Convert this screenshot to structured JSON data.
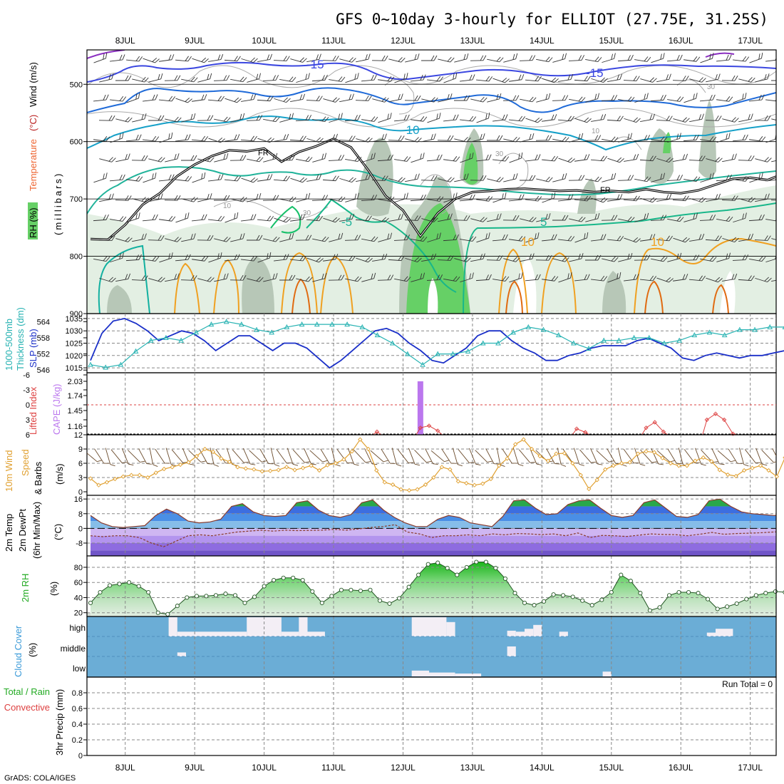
{
  "header": {
    "title": "GFS 0~10day 3-hourly for ELLIOT (27.75E, 31.25S)",
    "credit": "GrADS: COLA/IGES"
  },
  "time_axis": {
    "labels": [
      "8JUL",
      "9JUL",
      "10JUL",
      "11JUL",
      "12JUL",
      "13JUL",
      "14JUL",
      "15JUL",
      "16JUL",
      "17JUL"
    ],
    "start_hour": 0,
    "end_hour": 240
  },
  "colors": {
    "rh_green": "#5ccf5c",
    "temp_blue": "#3a78d8",
    "slp_line": "#1a2fc8",
    "thickness_line": "#29b3b3",
    "cape_bar": "#bb77ee",
    "lifted_index": "#dd4040",
    "wind_speed": "#e0a030",
    "cloud_bg": "#6badd6",
    "cloud_fill": "#f3eef5"
  },
  "chart_data": [
    {
      "name": "upper-air-panel",
      "type": "contour",
      "ylabel_parts": [
        "RH (%)",
        "Temperature",
        "(°C)",
        "Wind (m/s)"
      ],
      "yunits": "(millibars)",
      "y_ticks": [
        500,
        600,
        700,
        800,
        900
      ],
      "ylim": [
        440,
        900
      ],
      "contour_labels": [
        "-15",
        "-15",
        "-10",
        "-5",
        "5",
        "10",
        "10",
        "FR",
        "FR",
        "10",
        "10",
        "30",
        "30",
        "30"
      ],
      "freezing_level": [
        {
          "x": 0,
          "y": 770
        },
        {
          "x": 6,
          "y": 771
        },
        {
          "x": 12,
          "y": 745
        },
        {
          "x": 18,
          "y": 710
        },
        {
          "x": 24,
          "y": 690
        },
        {
          "x": 30,
          "y": 660
        },
        {
          "x": 36,
          "y": 640
        },
        {
          "x": 42,
          "y": 625
        },
        {
          "x": 48,
          "y": 615
        },
        {
          "x": 54,
          "y": 617
        },
        {
          "x": 60,
          "y": 612
        },
        {
          "x": 66,
          "y": 635
        },
        {
          "x": 72,
          "y": 618
        },
        {
          "x": 78,
          "y": 608
        },
        {
          "x": 84,
          "y": 595
        },
        {
          "x": 90,
          "y": 610
        },
        {
          "x": 96,
          "y": 650
        },
        {
          "x": 102,
          "y": 695
        },
        {
          "x": 108,
          "y": 720
        },
        {
          "x": 114,
          "y": 765
        },
        {
          "x": 120,
          "y": 725
        },
        {
          "x": 126,
          "y": 700
        },
        {
          "x": 132,
          "y": 688
        },
        {
          "x": 138,
          "y": 686
        },
        {
          "x": 144,
          "y": 683
        },
        {
          "x": 150,
          "y": 682
        },
        {
          "x": 156,
          "y": 684
        },
        {
          "x": 162,
          "y": 686
        },
        {
          "x": 168,
          "y": 685
        },
        {
          "x": 174,
          "y": 688
        },
        {
          "x": 180,
          "y": 686
        },
        {
          "x": 186,
          "y": 688
        },
        {
          "x": 192,
          "y": 683
        },
        {
          "x": 198,
          "y": 688
        },
        {
          "x": 204,
          "y": 690
        },
        {
          "x": 210,
          "y": 685
        },
        {
          "x": 216,
          "y": 675
        },
        {
          "x": 222,
          "y": 665
        },
        {
          "x": 228,
          "y": 663
        },
        {
          "x": 234,
          "y": 667
        },
        {
          "x": 240,
          "y": 655
        }
      ]
    },
    {
      "name": "slp-thickness-panel",
      "type": "line",
      "ylabel_left": [
        "1000-500mb",
        "Thickness (dm)"
      ],
      "ylabel_right": "SLP (mb)",
      "left_ticks": [
        546,
        552,
        558,
        564
      ],
      "right_ticks": [
        1015,
        1020,
        1025,
        1030,
        1035
      ],
      "thickness_range": [
        545,
        567
      ],
      "slp_range": [
        1013,
        1037
      ],
      "series": [
        {
          "values": [
            1018,
            1029,
            1034,
            1035,
            1033,
            1030,
            1026,
            1028,
            1030,
            1029,
            1026,
            1022,
            1025,
            1028,
            1028,
            1025,
            1022,
            1025,
            1025,
            1023,
            1019,
            1015,
            1018,
            1022,
            1026,
            1030,
            1031,
            1029,
            1025,
            1022,
            1018,
            1017,
            1020,
            1023,
            1028,
            1030,
            1030,
            1026,
            1023,
            1021,
            1018,
            1018,
            1020,
            1021,
            1023,
            1024,
            1024,
            1024,
            1026,
            1027,
            1025,
            1023,
            1019,
            1018,
            1020,
            1021,
            1020,
            1019,
            1020,
            1020,
            1021,
            1022
          ]
        },
        {
          "values": [
            548,
            547,
            548,
            553,
            557,
            558,
            557,
            560,
            563,
            564,
            563,
            561,
            560,
            562,
            563,
            563,
            563,
            563,
            562,
            559,
            556,
            552,
            548,
            552,
            552,
            553,
            556,
            556,
            560,
            562,
            561,
            559,
            556,
            554,
            557,
            557,
            558,
            558,
            556,
            557,
            559,
            560,
            559,
            561,
            561,
            562,
            562
          ]
        }
      ]
    },
    {
      "name": "cape-li-panel",
      "type": "bar",
      "ylabel_left": "Lifted Index",
      "ylabel_right": "CAPE (J/kg)",
      "li_ticks": [
        "6",
        "3",
        "0",
        "-3",
        "-6"
      ],
      "cape_ticks": [
        "1.16",
        "1.45",
        "1.74",
        "2.03"
      ],
      "cape_bars": [
        {
          "x": 114,
          "value": 2.03
        }
      ],
      "lifted_index_peaks": [
        {
          "x": 99,
          "y": 5.4
        },
        {
          "x": 114,
          "y": 4.6
        },
        {
          "x": 117,
          "y": 4.2
        },
        {
          "x": 120,
          "y": 5.2
        },
        {
          "x": 168,
          "y": 4.8
        },
        {
          "x": 171,
          "y": 5.5
        },
        {
          "x": 192,
          "y": 4.6
        },
        {
          "x": 195,
          "y": 3.5
        },
        {
          "x": 198,
          "y": 5.4
        },
        {
          "x": 213,
          "y": 3.0
        },
        {
          "x": 216,
          "y": 1.8
        },
        {
          "x": 219,
          "y": 3.0
        },
        {
          "x": 222,
          "y": 5.8
        }
      ]
    },
    {
      "name": "wind-panel",
      "type": "line",
      "ylabel": [
        "10m Wind",
        "Speed",
        "& Barbs",
        "(m/s)"
      ],
      "y_ticks": [
        0,
        3,
        6,
        9,
        12
      ],
      "ylim": [
        0,
        12
      ],
      "values": [
        2.8,
        1.4,
        2.0,
        2.7,
        3.2,
        3.5,
        3.5,
        3.0,
        4.0,
        4.8,
        5.2,
        5.7,
        6.2,
        7.5,
        9.0,
        8.4,
        7.0,
        6.3,
        5.2,
        4.9,
        4.7,
        4.3,
        4.4,
        4.6,
        5.2,
        4.6,
        5.0,
        5.5,
        4.5,
        5.6,
        6.0,
        6.8,
        8.5,
        11.0,
        9.0,
        4.5,
        2.0,
        1.5,
        0.5,
        0.3,
        0.5,
        1.5,
        3.0,
        5.2,
        4.7,
        2.2,
        1.8,
        1.4,
        1.7,
        2.7,
        5.5,
        7.0,
        10.0,
        11.0,
        9.0,
        7.5,
        6.5,
        8.0,
        8.1,
        6.0,
        3.5,
        0.6,
        2.5,
        4.7,
        5.5,
        6.0,
        6.2,
        8.0,
        8.5,
        8.3,
        7.1,
        6.0,
        5.5,
        5.5,
        6.5,
        7.2,
        6.4,
        4.6,
        3.6,
        3.3,
        4.5,
        5.0,
        5.5,
        4.5,
        3.2,
        7.2
      ]
    },
    {
      "name": "temp-panel",
      "type": "area",
      "ylabel": [
        "2m Temp",
        "2m DewPt",
        "(6hr Min/Max)",
        "(°C)"
      ],
      "y_ticks": [
        -8,
        0,
        8,
        16
      ],
      "ylim": [
        -15,
        18
      ],
      "series": [
        {
          "values": [
            7,
            3,
            1,
            0.5,
            1,
            1.5,
            7,
            10.5,
            8,
            4,
            3,
            3.5,
            5,
            12,
            13.5,
            9,
            7,
            6.5,
            7,
            14,
            15,
            10,
            7,
            6,
            7.5,
            14,
            15.5,
            10,
            6,
            3,
            1,
            1,
            5,
            7,
            6,
            3,
            2,
            1,
            6.5,
            15,
            15.5,
            11,
            7.5,
            8,
            13,
            15,
            15.5,
            11,
            7,
            6,
            7,
            14,
            15.5,
            11,
            6.5,
            6,
            7.5,
            15,
            16,
            12,
            9,
            8,
            7.5,
            7,
            8
          ]
        },
        {
          "values": [
            -4,
            -4.5,
            -4,
            -4,
            -5,
            -8,
            -10,
            -7,
            -4,
            -3.5,
            -4,
            -3,
            -2,
            -1.5,
            -1,
            -1.5,
            -1,
            -1.2,
            -1.1,
            -1,
            -0.5,
            -1,
            -0.3,
            0.5,
            1,
            2,
            -2,
            -3,
            -5,
            -4,
            -4,
            -3.5,
            -4,
            -3,
            -3.5,
            -2.8,
            -3,
            -3.4,
            -3,
            -4,
            -2.5,
            -5,
            -3.8,
            -4,
            -4.4,
            -3.7,
            -3,
            -3.3,
            -3.4,
            -4,
            -3.2,
            -2.2,
            -3.2,
            -2.8,
            -2.6,
            -2.4,
            -2,
            -1.6
          ]
        }
      ]
    },
    {
      "name": "rh-panel",
      "type": "area",
      "ylabel": [
        "2m RH",
        "(%)"
      ],
      "y_ticks": [
        20,
        40,
        60,
        80
      ],
      "ylim": [
        15,
        95
      ],
      "values": [
        33,
        47,
        56,
        58,
        60,
        55,
        47,
        20,
        18,
        29,
        40,
        42,
        42,
        43,
        45,
        43,
        33,
        41,
        55,
        63,
        66,
        66,
        63,
        48,
        33,
        42,
        50,
        50,
        49,
        50,
        36,
        32,
        39,
        54,
        70,
        84,
        86,
        79,
        70,
        80,
        87,
        87,
        79,
        65,
        46,
        33,
        30,
        35,
        44,
        43,
        41,
        36,
        30,
        37,
        47,
        70,
        62,
        46,
        23,
        27,
        43,
        47,
        47,
        46,
        38,
        25,
        28,
        32,
        38,
        43,
        46,
        48,
        47
      ]
    },
    {
      "name": "cloud-panel",
      "type": "heatmap",
      "ylabel": [
        "Cloud Cover",
        "(%)"
      ],
      "row_labels": [
        "high",
        "middle",
        "low"
      ],
      "high_cells": [
        [
          27,
          30,
          1.0
        ],
        [
          30,
          54,
          0.25
        ],
        [
          54,
          66,
          1.0
        ],
        [
          66,
          72,
          0.25
        ],
        [
          72,
          75,
          1.0
        ],
        [
          75,
          81,
          0.25
        ],
        [
          111,
          123,
          1.0
        ],
        [
          123,
          126,
          0.75
        ],
        [
          144,
          147,
          0.3
        ],
        [
          147,
          150,
          0.25
        ],
        [
          150,
          153,
          0.4
        ],
        [
          153,
          156,
          0.6
        ],
        [
          162,
          165,
          0.25
        ],
        [
          213,
          216,
          0.2
        ],
        [
          216,
          222,
          0.4
        ]
      ],
      "middle_cells": [
        [
          30,
          33,
          0.2
        ],
        [
          144,
          147,
          0.5
        ]
      ],
      "low_cells": [
        [
          111,
          117,
          0.3
        ],
        [
          117,
          126,
          0.2
        ],
        [
          126,
          135,
          0.15
        ],
        [
          177,
          180,
          0.25
        ]
      ]
    },
    {
      "name": "precip-panel",
      "type": "bar",
      "ylabel_left": [
        "Total / Rain",
        "Convective"
      ],
      "ylabel_axis": "3hr Precip (mm)",
      "y_ticks": [
        "0",
        "0.2",
        "0.4",
        "0.6",
        "0.8"
      ],
      "ylim": [
        0,
        1
      ],
      "run_total": "Run Total = 0",
      "values": []
    }
  ]
}
